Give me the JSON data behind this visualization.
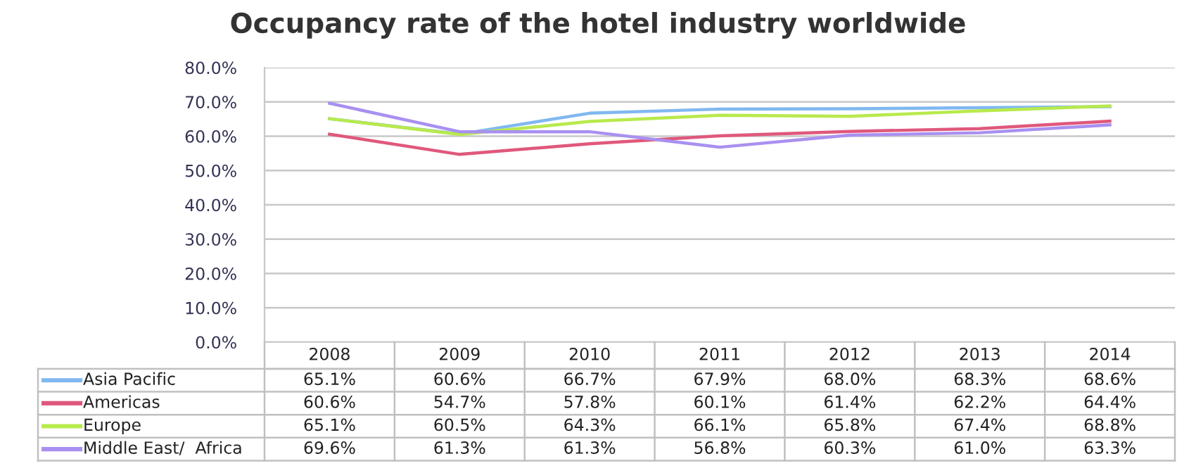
{
  "chart_data": {
    "type": "line",
    "title": "Occupancy rate of the hotel industry worldwide",
    "categories": [
      "2008",
      "2009",
      "2010",
      "2011",
      "2012",
      "2013",
      "2014"
    ],
    "series": [
      {
        "name": "Asia Pacific",
        "color": "#80b8f0",
        "values": [
          65.1,
          60.6,
          66.7,
          67.9,
          68.0,
          68.3,
          68.6
        ],
        "value_labels": [
          "65.1%",
          "60.6%",
          "66.7%",
          "67.9%",
          "68.0%",
          "68.3%",
          "68.6%"
        ]
      },
      {
        "name": "Americas",
        "color": "#e0587c",
        "values": [
          60.6,
          54.7,
          57.8,
          60.1,
          61.4,
          62.2,
          64.4
        ],
        "value_labels": [
          "60.6%",
          "54.7%",
          "57.8%",
          "60.1%",
          "61.4%",
          "62.2%",
          "64.4%"
        ]
      },
      {
        "name": "Europe",
        "color": "#b8ea4c",
        "values": [
          65.1,
          60.5,
          64.3,
          66.1,
          65.8,
          67.4,
          68.8
        ],
        "value_labels": [
          "65.1%",
          "60.5%",
          "64.3%",
          "66.1%",
          "65.8%",
          "67.4%",
          "68.8%"
        ]
      },
      {
        "name": "Middle East/  Africa",
        "color": "#a990f0",
        "values": [
          69.6,
          61.3,
          61.3,
          56.8,
          60.3,
          61.0,
          63.3
        ],
        "value_labels": [
          "69.6%",
          "61.3%",
          "61.3%",
          "56.8%",
          "60.3%",
          "61.0%",
          "63.3%"
        ]
      }
    ],
    "ylim": [
      0,
      80
    ],
    "yticks": [
      {
        "value": 0,
        "label": "0.0%"
      },
      {
        "value": 10,
        "label": "10.0%"
      },
      {
        "value": 20,
        "label": "20.0%"
      },
      {
        "value": 30,
        "label": "30.0%"
      },
      {
        "value": 40,
        "label": "40.0%"
      },
      {
        "value": 50,
        "label": "50.0%"
      },
      {
        "value": 60,
        "label": "60.0%"
      },
      {
        "value": 70,
        "label": "70.0%"
      },
      {
        "value": 80,
        "label": "80.0%"
      }
    ],
    "grid": "y",
    "legend": "bottom",
    "marker": "none",
    "line_style": "solid"
  }
}
